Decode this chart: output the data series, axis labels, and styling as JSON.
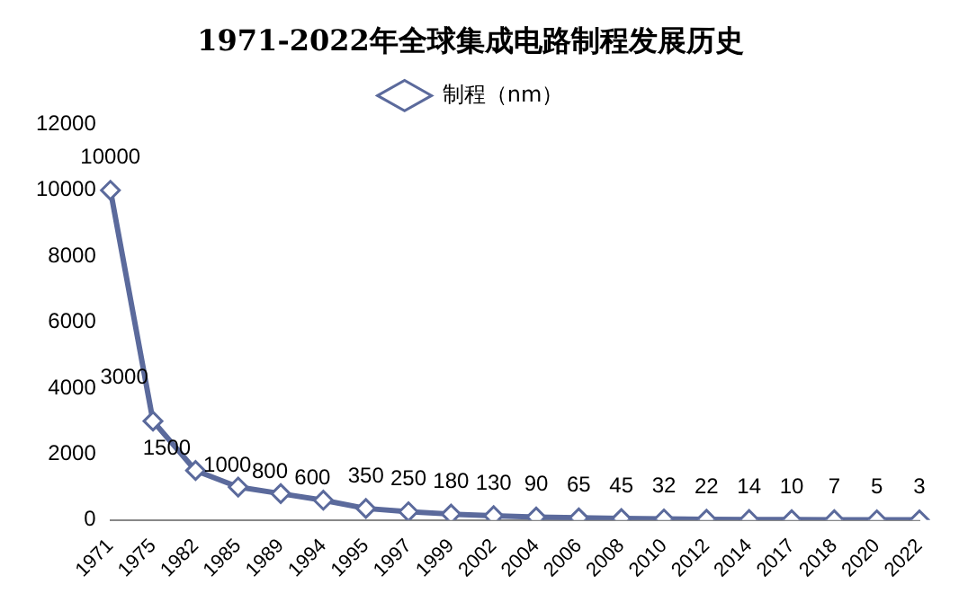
{
  "chart_data": {
    "type": "line",
    "title": "1971-2022年全球集成电路制程发展历史",
    "categories": [
      "1971",
      "1975",
      "1982",
      "1985",
      "1989",
      "1994",
      "1995",
      "1997",
      "1999",
      "2002",
      "2004",
      "2006",
      "2008",
      "2010",
      "2012",
      "2014",
      "2017",
      "2018",
      "2020",
      "2022"
    ],
    "series": [
      {
        "name": "制程（nm）",
        "color": "#5b6a9c",
        "values": [
          10000,
          3000,
          1500,
          1000,
          800,
          600,
          350,
          250,
          180,
          130,
          90,
          65,
          45,
          32,
          22,
          14,
          10,
          7,
          5,
          3
        ]
      }
    ],
    "ylim": [
      0,
      12000
    ],
    "yticks": [
      0,
      2000,
      4000,
      6000,
      8000,
      10000,
      12000
    ],
    "grid": false,
    "legend": "top",
    "marker": "diamond",
    "line_style": "solid",
    "data_labels": true
  }
}
